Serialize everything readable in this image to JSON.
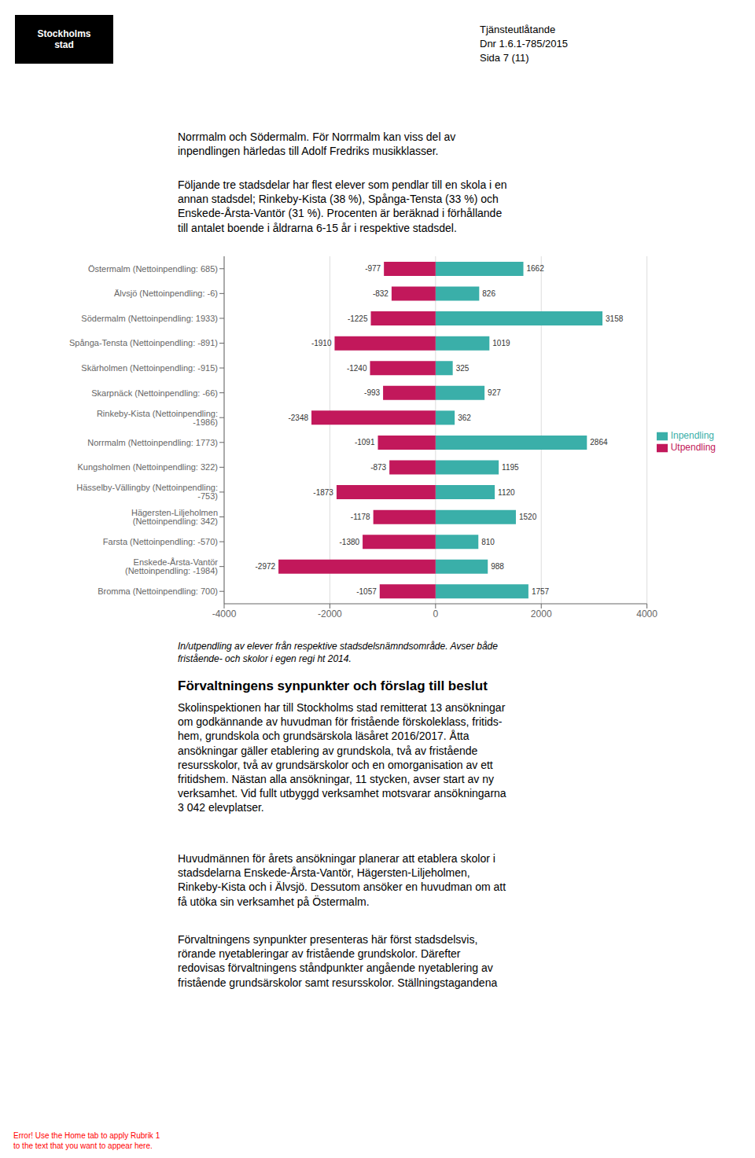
{
  "chart_data": {
    "type": "bar",
    "orientation": "horizontal",
    "categories": [
      "Östermalm (Nettoinpendling: 685)",
      "Älvsjö (Nettoinpendling: -6)",
      "Södermalm (Nettoinpendling: 1933)",
      "Spånga-Tensta (Nettoinpendling: -891)",
      "Skärholmen (Nettoinpendling: -915)",
      "Skarpnäck (Nettoinpendling: -66)",
      "Rinkeby-Kista (Nettoinpendling: -1986)",
      "Norrmalm (Nettoinpendling: 1773)",
      "Kungsholmen (Nettoinpendling: 322)",
      "Hässelby-Vällingby (Nettoinpendling: -753)",
      "Hägersten-Liljeholmen (Nettoinpendling: 342)",
      "Farsta (Nettoinpendling: -570)",
      "Enskede-Årsta-Vantör (Nettoinpendling: -1984)",
      "Bromma (Nettoinpendling: 700)"
    ],
    "series": [
      {
        "name": "Inpendling",
        "color": "#3aafa9",
        "values": [
          1662,
          826,
          3158,
          1019,
          325,
          927,
          362,
          2864,
          1195,
          1120,
          1520,
          810,
          988,
          1757
        ]
      },
      {
        "name": "Utpendling",
        "color": "#c2185b",
        "values": [
          -977,
          -832,
          -1225,
          -1910,
          -1240,
          -993,
          -2348,
          -1091,
          -873,
          -1873,
          -1178,
          -1380,
          -2972,
          -1057
        ]
      }
    ],
    "xlim": [
      -4000,
      4000
    ],
    "xticks": [
      -4000,
      -2000,
      0,
      2000,
      4000
    ],
    "grid": true,
    "legend": "right",
    "data_labels": true,
    "annotations": [
      "Tjänsteutlåtande",
      "Dnr 1.6.1-785/2015",
      "Sida 7 (11)",
      "Stockholms\nstad",
      "Norrmalm och Södermalm. För Norrmalm kan viss del av\ninpendlingen härledas till Adolf Fredriks musikklasser.",
      "Följande tre stadsdelar har flest elever som pendlar till en skola i en\nannan stadsdel; Rinkeby-Kista (38 %), Spånga-Tensta (33 %) och\nEnskede-Årsta-Vantör (31 %). Procenten är beräknad i förhållande\ntill antalet boende i åldrarna 6-15 år i respektive stadsdel.",
      "In/utpendling av elever från respektive stadsdelsnämndsområde. Avser både\nfristående- och skolor i egen regi ht 2014.",
      "Förvaltningens synpunkter och förslag till beslut",
      "Skolinspektionen har till Stockholms stad remitterat 13 ansökningar\nom godkännande av huvudman för fristående förskoleklass, fritids-\nhem, grundskola och grundsärskola läsåret 2016/2017. Åtta\nansökningar gäller etablering av grundskola, två av fristående\nresursskolor, två av grundsärskolor och en omorganisation av ett\nfritidshem. Nästan alla ansökningar, 11 stycken, avser start av ny\nverksamhet. Vid fullt utbyggd verksamhet motsvarar ansökningarna\n3 042 elevplatser.",
      "Huvudmännen för årets ansökningar planerar att etablera skolor i\nstadsdelarna Enskede-Årsta-Vantör, Hägersten-Liljeholmen,\nRinkeby-Kista och i Älvsjö. Dessutom ansöker en huvudman om att\nfå utöka sin verksamhet på Östermalm.",
      "Förvaltningens synpunkter presenteras här först stadsdelsvis,\nrörande nyetableringar av fristående grundskolor. Därefter\nredovisas förvaltningens ståndpunkter angående nyetablering av\nfristående grundsärskolor samt resursskolor. Ställningstagandena",
      "Error! Use the Home tab to apply Rubrik 1\nto the text that you want to appear here."
    ]
  }
}
